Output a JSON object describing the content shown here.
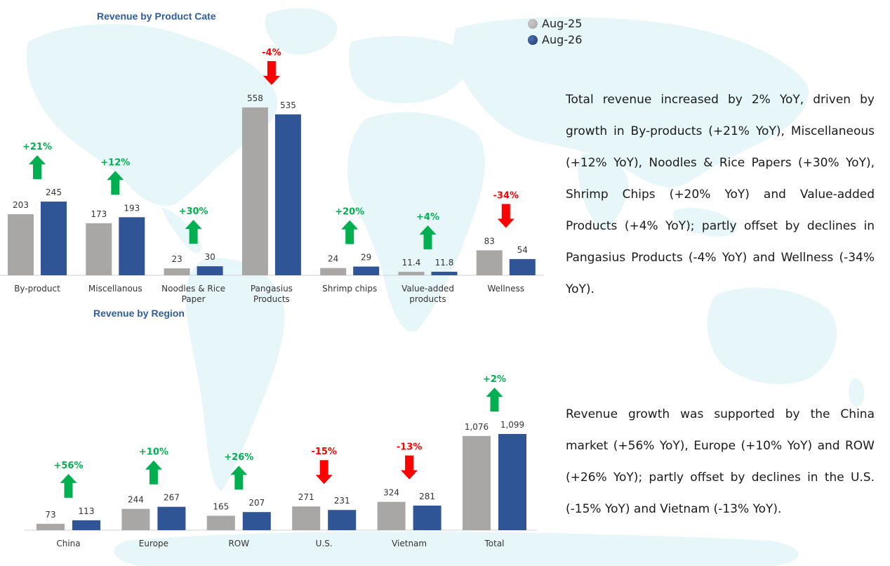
{
  "colors": {
    "aug25": "#a9a6a6",
    "aug26": "#2f5597",
    "up": "#00b050",
    "down": "#ff0000",
    "title": "#2f5d9e",
    "map": "#e6f6f9"
  },
  "legend": {
    "items": [
      {
        "label": "Aug-25",
        "color": "#a9a6a6"
      },
      {
        "label": "Aug-26",
        "color": "#2f5597"
      }
    ]
  },
  "paragraphs": {
    "product": "Total revenue increased by 2% YoY, driven by growth in By-products (+21% YoY), Miscellaneous (+12% YoY), Noodles & Rice Papers (+30% YoY), Shrimp Chips (+20% YoY) and Value-added Products (+4% YoY); partly offset by declines in Pangasius Products (-4% YoY) and Wellness (-34% YoY).",
    "region": "Revenue growth was supported by the China market (+56% YoY), Europe (+10% YoY) and ROW (+26% YoY); partly offset by declines in the U.S. (-15% YoY) and Vietnam (-13% YoY)."
  },
  "chart_data": [
    {
      "type": "bar",
      "title": "Revenue by Product Cate",
      "categories": [
        [
          "By-product"
        ],
        [
          "Miscellanous"
        ],
        [
          "Noodles & Rice",
          "Paper"
        ],
        [
          "Pangasius",
          "Products"
        ],
        [
          "Shrimp chips"
        ],
        [
          "Value-added",
          "products"
        ],
        [
          "Wellness"
        ]
      ],
      "series": [
        {
          "name": "Aug-25",
          "values": [
            203,
            173,
            23,
            558,
            24,
            11.4,
            83
          ],
          "labels": [
            "203",
            "173",
            "23",
            "558",
            "24",
            "11.4",
            "83"
          ]
        },
        {
          "name": "Aug-26",
          "values": [
            245,
            193,
            30,
            535,
            29,
            11.8,
            54
          ],
          "labels": [
            "245",
            "193",
            "30",
            "535",
            "29",
            "11.8",
            "54"
          ]
        }
      ],
      "changes": [
        "+21%",
        "+12%",
        "+30%",
        "-4%",
        "+20%",
        "+4%",
        "-34%"
      ],
      "ylim": [
        0,
        558
      ],
      "grid": false,
      "legend": "top-right"
    },
    {
      "type": "bar",
      "title": "Revenue by Region",
      "categories": [
        [
          "China"
        ],
        [
          "Europe"
        ],
        [
          "ROW"
        ],
        [
          "U.S."
        ],
        [
          "Vietnam"
        ],
        [
          "Total"
        ]
      ],
      "series": [
        {
          "name": "Aug-25",
          "values": [
            73,
            244,
            165,
            271,
            324,
            1076
          ],
          "labels": [
            "73",
            "244",
            "165",
            "271",
            "324",
            "1,076"
          ]
        },
        {
          "name": "Aug-26",
          "values": [
            113,
            267,
            207,
            231,
            281,
            1099
          ],
          "labels": [
            "113",
            "267",
            "207",
            "231",
            "281",
            "1,099"
          ]
        }
      ],
      "changes": [
        "+56%",
        "+10%",
        "+26%",
        "-15%",
        "-13%",
        "+2%"
      ],
      "ylim": [
        0,
        1099
      ],
      "grid": false
    }
  ]
}
